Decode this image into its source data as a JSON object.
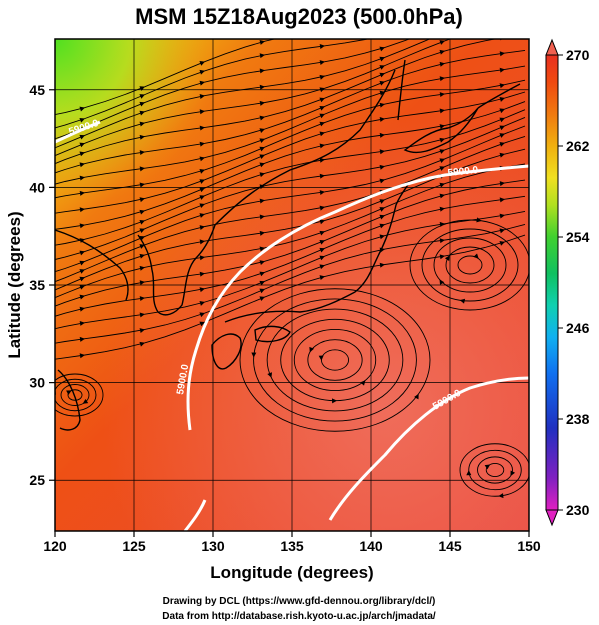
{
  "title": "MSM 15Z18Aug2023 (500.0hPa)",
  "x_axis": {
    "label": "Longitude (degrees)",
    "ticks": [
      "120",
      "125",
      "130",
      "135",
      "140",
      "145",
      "150"
    ],
    "range": [
      120,
      150
    ]
  },
  "y_axis": {
    "label": "Latitude  (degrees)",
    "ticks": [
      "25",
      "30",
      "35",
      "40",
      "45"
    ],
    "range": [
      22.4,
      47.6
    ]
  },
  "colorbar": {
    "ticks": [
      "270",
      "262",
      "254",
      "246",
      "238",
      "230"
    ],
    "range": [
      230,
      270
    ],
    "colors": [
      "#e020c0",
      "#8020c0",
      "#2030c0",
      "#1060f0",
      "#10b0f0",
      "#10d0c0",
      "#10c060",
      "#30d030",
      "#a0e020",
      "#e0e020",
      "#f0b010",
      "#f08010",
      "#f05010",
      "#e83018",
      "#f06050"
    ]
  },
  "contours": [
    {
      "label": "5900.0"
    },
    {
      "label": "5900.0"
    },
    {
      "label": "5900.0"
    },
    {
      "label": "5900.0"
    }
  ],
  "credits": {
    "line1": "Drawing by DCL (https://www.gfd-dennou.org/library/dcl/)",
    "line2": "Data from http://database.rish.kyoto-u.ac.jp/arch/jmadata/"
  },
  "colors": {
    "frame": "#000000",
    "contour": "#ffffff",
    "streamline": "#000000",
    "warm_field": "#e84a30",
    "cool_corner": "#60e020"
  }
}
